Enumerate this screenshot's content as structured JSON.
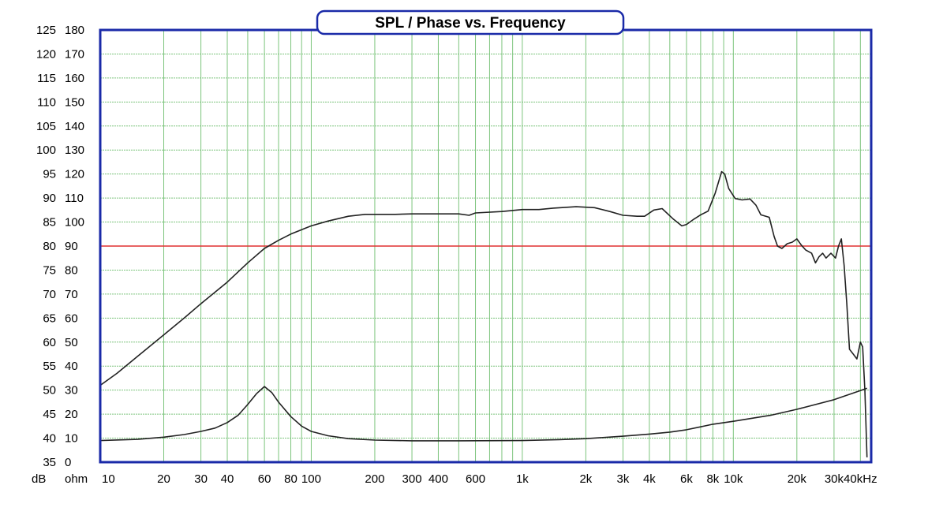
{
  "chart_data": {
    "type": "line",
    "title": "SPL / Phase vs. Frequency",
    "x_scale": "log",
    "xlim": [
      10,
      45000
    ],
    "x_ticks": [
      {
        "value": 10,
        "label": "10"
      },
      {
        "value": 20,
        "label": "20"
      },
      {
        "value": 30,
        "label": "30"
      },
      {
        "value": 40,
        "label": "40"
      },
      {
        "value": 60,
        "label": "60"
      },
      {
        "value": 80,
        "label": "80"
      },
      {
        "value": 100,
        "label": "100"
      },
      {
        "value": 200,
        "label": "200"
      },
      {
        "value": 300,
        "label": "300"
      },
      {
        "value": 400,
        "label": "400"
      },
      {
        "value": 600,
        "label": "600"
      },
      {
        "value": 1000,
        "label": "1k"
      },
      {
        "value": 2000,
        "label": "2k"
      },
      {
        "value": 3000,
        "label": "3k"
      },
      {
        "value": 4000,
        "label": "4k"
      },
      {
        "value": 6000,
        "label": "6k"
      },
      {
        "value": 8000,
        "label": "8k"
      },
      {
        "value": 10000,
        "label": "10k"
      },
      {
        "value": 20000,
        "label": "20k"
      },
      {
        "value": 30000,
        "label": "30k"
      },
      {
        "value": 40000,
        "label": "40kHz"
      }
    ],
    "x_gridlines": [
      10,
      20,
      30,
      40,
      50,
      60,
      70,
      80,
      90,
      100,
      200,
      300,
      400,
      500,
      600,
      700,
      800,
      900,
      1000,
      2000,
      3000,
      4000,
      5000,
      6000,
      7000,
      8000,
      9000,
      10000,
      20000,
      30000,
      40000
    ],
    "ylim": [
      35,
      125
    ],
    "y_step": 5,
    "y_unit_label": "dB",
    "y2_unit_label": "ohm",
    "y_ticks": [
      "125",
      "120",
      "115",
      "110",
      "105",
      "100",
      "95",
      "90",
      "85",
      "80",
      "75",
      "70",
      "65",
      "60",
      "55",
      "50",
      "45",
      "40",
      "35"
    ],
    "y2_ticks": [
      "180",
      "170",
      "160",
      "150",
      "140",
      "130",
      "120",
      "110",
      "100",
      "90",
      "80",
      "70",
      "60",
      "50",
      "40",
      "30",
      "20",
      "10",
      "0"
    ],
    "reference_line": {
      "y": 80,
      "color": "#e03030"
    },
    "grid": true,
    "colors": {
      "frame": "#1a2aa8",
      "grid": "#7cc47c",
      "curve": "#222222",
      "reference": "#e03030"
    },
    "series": [
      {
        "values_axis": "dB",
        "color": "#222222",
        "points": [
          [
            10,
            51
          ],
          [
            12,
            53.5
          ],
          [
            15,
            57
          ],
          [
            20,
            61.5
          ],
          [
            25,
            65
          ],
          [
            30,
            68
          ],
          [
            40,
            72.5
          ],
          [
            50,
            76.5
          ],
          [
            60,
            79.5
          ],
          [
            70,
            81.2
          ],
          [
            80,
            82.5
          ],
          [
            90,
            83.4
          ],
          [
            100,
            84.2
          ],
          [
            120,
            85.2
          ],
          [
            150,
            86.2
          ],
          [
            180,
            86.6
          ],
          [
            200,
            86.6
          ],
          [
            250,
            86.6
          ],
          [
            300,
            86.7
          ],
          [
            400,
            86.7
          ],
          [
            500,
            86.7
          ],
          [
            560,
            86.4
          ],
          [
            600,
            86.9
          ],
          [
            800,
            87.2
          ],
          [
            1000,
            87.6
          ],
          [
            1200,
            87.6
          ],
          [
            1400,
            87.9
          ],
          [
            1800,
            88.2
          ],
          [
            2200,
            88
          ],
          [
            2600,
            87.2
          ],
          [
            3000,
            86.4
          ],
          [
            3500,
            86.2
          ],
          [
            3800,
            86.2
          ],
          [
            4200,
            87.5
          ],
          [
            4600,
            87.8
          ],
          [
            5200,
            85.6
          ],
          [
            5700,
            84.2
          ],
          [
            6000,
            84.5
          ],
          [
            6500,
            85.6
          ],
          [
            7000,
            86.5
          ],
          [
            7600,
            87.3
          ],
          [
            8200,
            91
          ],
          [
            8800,
            95.5
          ],
          [
            9100,
            95
          ],
          [
            9500,
            92
          ],
          [
            10200,
            89.9
          ],
          [
            11000,
            89.6
          ],
          [
            12000,
            89.8
          ],
          [
            12800,
            88.5
          ],
          [
            13500,
            86.5
          ],
          [
            14800,
            86
          ],
          [
            15600,
            82
          ],
          [
            16200,
            80
          ],
          [
            17000,
            79.5
          ],
          [
            18000,
            80.5
          ],
          [
            19000,
            80.8
          ],
          [
            20000,
            81.5
          ],
          [
            21000,
            80.2
          ],
          [
            22000,
            79.2
          ],
          [
            23500,
            78.5
          ],
          [
            24500,
            76.5
          ],
          [
            25500,
            77.8
          ],
          [
            26500,
            78.5
          ],
          [
            27500,
            77.5
          ],
          [
            29000,
            78.5
          ],
          [
            30500,
            77.5
          ],
          [
            31500,
            80
          ],
          [
            32500,
            81.5
          ],
          [
            33500,
            76
          ],
          [
            34500,
            68
          ],
          [
            35500,
            58.5
          ],
          [
            37000,
            57.5
          ],
          [
            38500,
            56.5
          ],
          [
            40000,
            60
          ],
          [
            41000,
            59
          ],
          [
            42000,
            50
          ],
          [
            43000,
            36
          ]
        ]
      },
      {
        "values_axis": "ohm",
        "color": "#222222",
        "points": [
          [
            10,
            9
          ],
          [
            15,
            9.5
          ],
          [
            20,
            10.4
          ],
          [
            25,
            11.5
          ],
          [
            30,
            12.8
          ],
          [
            35,
            14.2
          ],
          [
            40,
            16.5
          ],
          [
            45,
            19.5
          ],
          [
            50,
            24
          ],
          [
            55,
            28.5
          ],
          [
            60,
            31.5
          ],
          [
            65,
            29
          ],
          [
            70,
            25
          ],
          [
            80,
            19
          ],
          [
            90,
            15
          ],
          [
            100,
            12.8
          ],
          [
            120,
            11
          ],
          [
            150,
            9.8
          ],
          [
            200,
            9.2
          ],
          [
            300,
            8.9
          ],
          [
            500,
            8.9
          ],
          [
            1000,
            9
          ],
          [
            1500,
            9.4
          ],
          [
            2000,
            9.8
          ],
          [
            3000,
            10.8
          ],
          [
            4000,
            11.7
          ],
          [
            5000,
            12.5
          ],
          [
            6000,
            13.5
          ],
          [
            7000,
            14.7
          ],
          [
            8000,
            15.8
          ],
          [
            10000,
            17
          ],
          [
            15000,
            19.5
          ],
          [
            20000,
            22
          ],
          [
            30000,
            26
          ],
          [
            40000,
            29.8
          ],
          [
            43000,
            30.8
          ]
        ]
      }
    ]
  }
}
